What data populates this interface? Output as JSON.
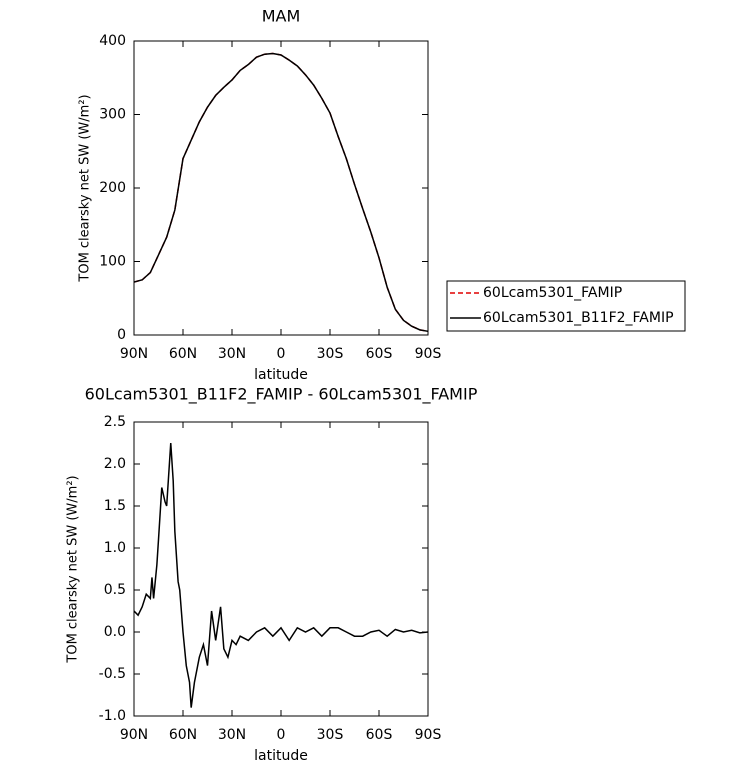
{
  "chart_data": [
    {
      "type": "line",
      "title": "MAM",
      "x_label": "latitude",
      "y_label": "TOM clearsky net SW (W/m²)",
      "x": [
        90,
        85,
        80,
        75,
        70,
        65,
        60,
        55,
        50,
        45,
        40,
        35,
        30,
        25,
        20,
        15,
        10,
        5,
        0,
        -5,
        -10,
        -15,
        -20,
        -25,
        -30,
        -35,
        -40,
        -45,
        -50,
        -55,
        -60,
        -65,
        -70,
        -75,
        -80,
        -85,
        -90
      ],
      "series": [
        {
          "name": "60Lcam5301_FAMIP",
          "color": "#e00000",
          "line_style": "dashed",
          "values": [
            72,
            75,
            85,
            109,
            133,
            170,
            240,
            265,
            290,
            310,
            326,
            337,
            347,
            360,
            368,
            378,
            382,
            383,
            381,
            374,
            366,
            354,
            340,
            322,
            302,
            270,
            240,
            205,
            172,
            140,
            105,
            65,
            35,
            20,
            12,
            7,
            5
          ]
        },
        {
          "name": "60Lcam5301_B11F2_FAMIP",
          "color": "#000000",
          "line_style": "solid",
          "values": [
            72,
            75,
            85,
            109,
            133,
            170,
            240,
            265,
            290,
            310,
            326,
            337,
            347,
            360,
            368,
            378,
            382,
            383,
            381,
            374,
            366,
            354,
            340,
            322,
            302,
            270,
            240,
            205,
            172,
            140,
            105,
            65,
            35,
            20,
            12,
            7,
            5
          ]
        }
      ],
      "xlim": [
        90,
        -90
      ],
      "xticks": [
        {
          "value": 90,
          "label": "90N"
        },
        {
          "value": 60,
          "label": "60N"
        },
        {
          "value": 30,
          "label": "30N"
        },
        0,
        {
          "value": -30,
          "label": "30S"
        },
        {
          "value": -60,
          "label": "60S"
        },
        {
          "value": -90,
          "label": "90S"
        }
      ],
      "ylim": [
        0,
        400
      ],
      "yticks": [
        0,
        100,
        200,
        300,
        400
      ],
      "legend": "right"
    },
    {
      "type": "line",
      "title": "60Lcam5301_B11F2_FAMIP - 60Lcam5301_FAMIP",
      "x_label": "latitude",
      "y_label": "TOM clearsky net SW (W/m²)",
      "x": [
        90,
        87.5,
        85,
        82.5,
        80,
        79,
        78,
        76,
        75,
        73,
        71,
        70,
        67.5,
        66,
        65,
        63,
        62,
        60,
        58,
        56,
        55,
        53,
        50,
        47.5,
        45,
        42.5,
        40,
        37,
        35,
        32.5,
        30,
        27.5,
        25,
        20,
        15,
        10,
        5,
        0,
        -5,
        -10,
        -15,
        -20,
        -25,
        -30,
        -35,
        -40,
        -45,
        -50,
        -55,
        -60,
        -65,
        -70,
        -75,
        -80,
        -85,
        -90
      ],
      "series": [
        {
          "color": "#000000",
          "line_style": "solid",
          "values": [
            0.25,
            0.2,
            0.3,
            0.45,
            0.4,
            0.65,
            0.4,
            0.8,
            1.1,
            1.72,
            1.55,
            1.5,
            2.25,
            1.8,
            1.2,
            0.6,
            0.5,
            0,
            -0.4,
            -0.6,
            -0.9,
            -0.6,
            -0.3,
            -0.15,
            -0.4,
            0.25,
            -0.1,
            0.3,
            -0.2,
            -0.3,
            -0.1,
            -0.15,
            -0.05,
            -0.1,
            0,
            0.05,
            -0.05,
            0.05,
            -0.1,
            0.05,
            0,
            0.05,
            -0.05,
            0.05,
            0.05,
            0,
            -0.05,
            -0.05,
            0,
            0.02,
            -0.05,
            0.03,
            0,
            0.02,
            -0.01,
            0
          ]
        }
      ],
      "xlim": [
        90,
        -90
      ],
      "xticks": [
        {
          "value": 90,
          "label": "90N"
        },
        {
          "value": 60,
          "label": "60N"
        },
        {
          "value": 30,
          "label": "30N"
        },
        0,
        {
          "value": -30,
          "label": "30S"
        },
        {
          "value": -60,
          "label": "60S"
        },
        {
          "value": -90,
          "label": "90S"
        }
      ],
      "ylim": [
        -1,
        2.5
      ],
      "yticks": [
        {
          "value": -1,
          "label": "-1.0"
        },
        -0.5,
        {
          "value": 0,
          "label": "0.0"
        },
        0.5,
        {
          "value": 1,
          "label": "1.0"
        },
        1.5,
        {
          "value": 2,
          "label": "2.0"
        },
        2.5
      ]
    }
  ]
}
